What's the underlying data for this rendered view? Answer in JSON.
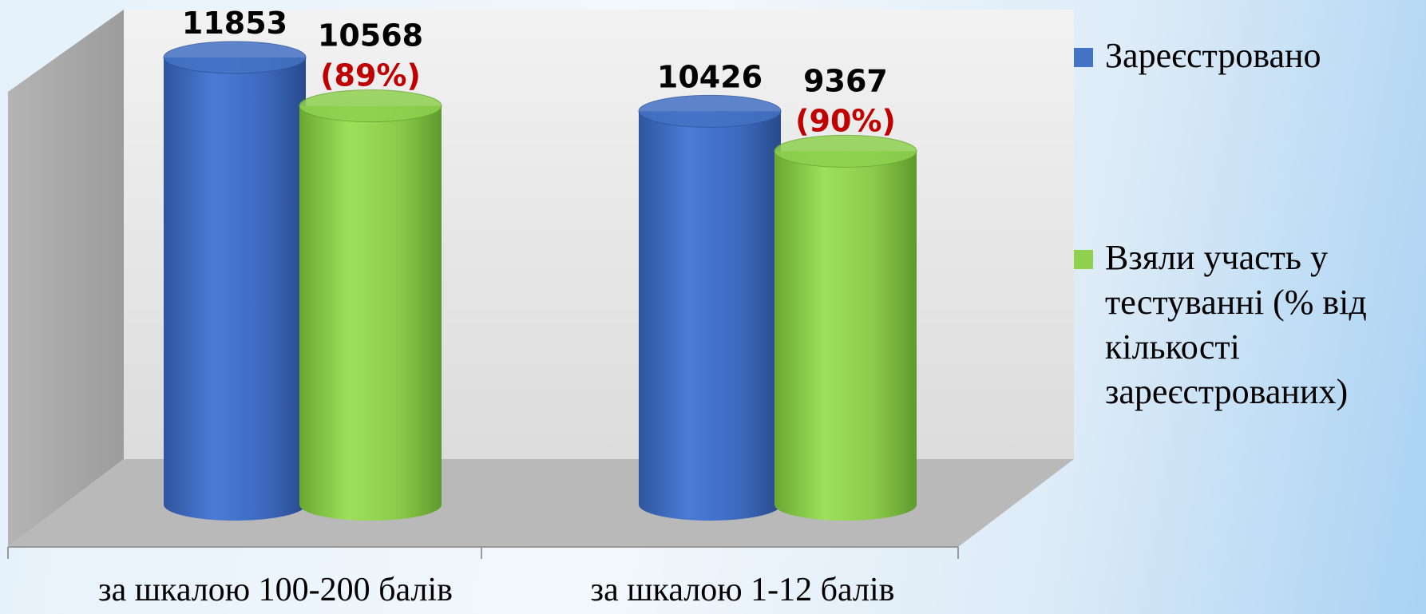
{
  "chart_data": {
    "type": "bar3d-cylinder",
    "categories": [
      "за шкалою 100-200 балів",
      "за шкалою 1-12 балів"
    ],
    "series": [
      {
        "name": "Зареєстровано",
        "color": "#4472c4",
        "values": [
          11853,
          10426
        ]
      },
      {
        "name": "Взяли участь у тестуванні (% від кількості зареєстрованих)",
        "color": "#8fd14f",
        "values": [
          10568,
          9367
        ]
      }
    ],
    "annotations": [
      "(89%)",
      "(90%)"
    ],
    "ylim": [
      0,
      12000
    ],
    "legend": "right"
  }
}
